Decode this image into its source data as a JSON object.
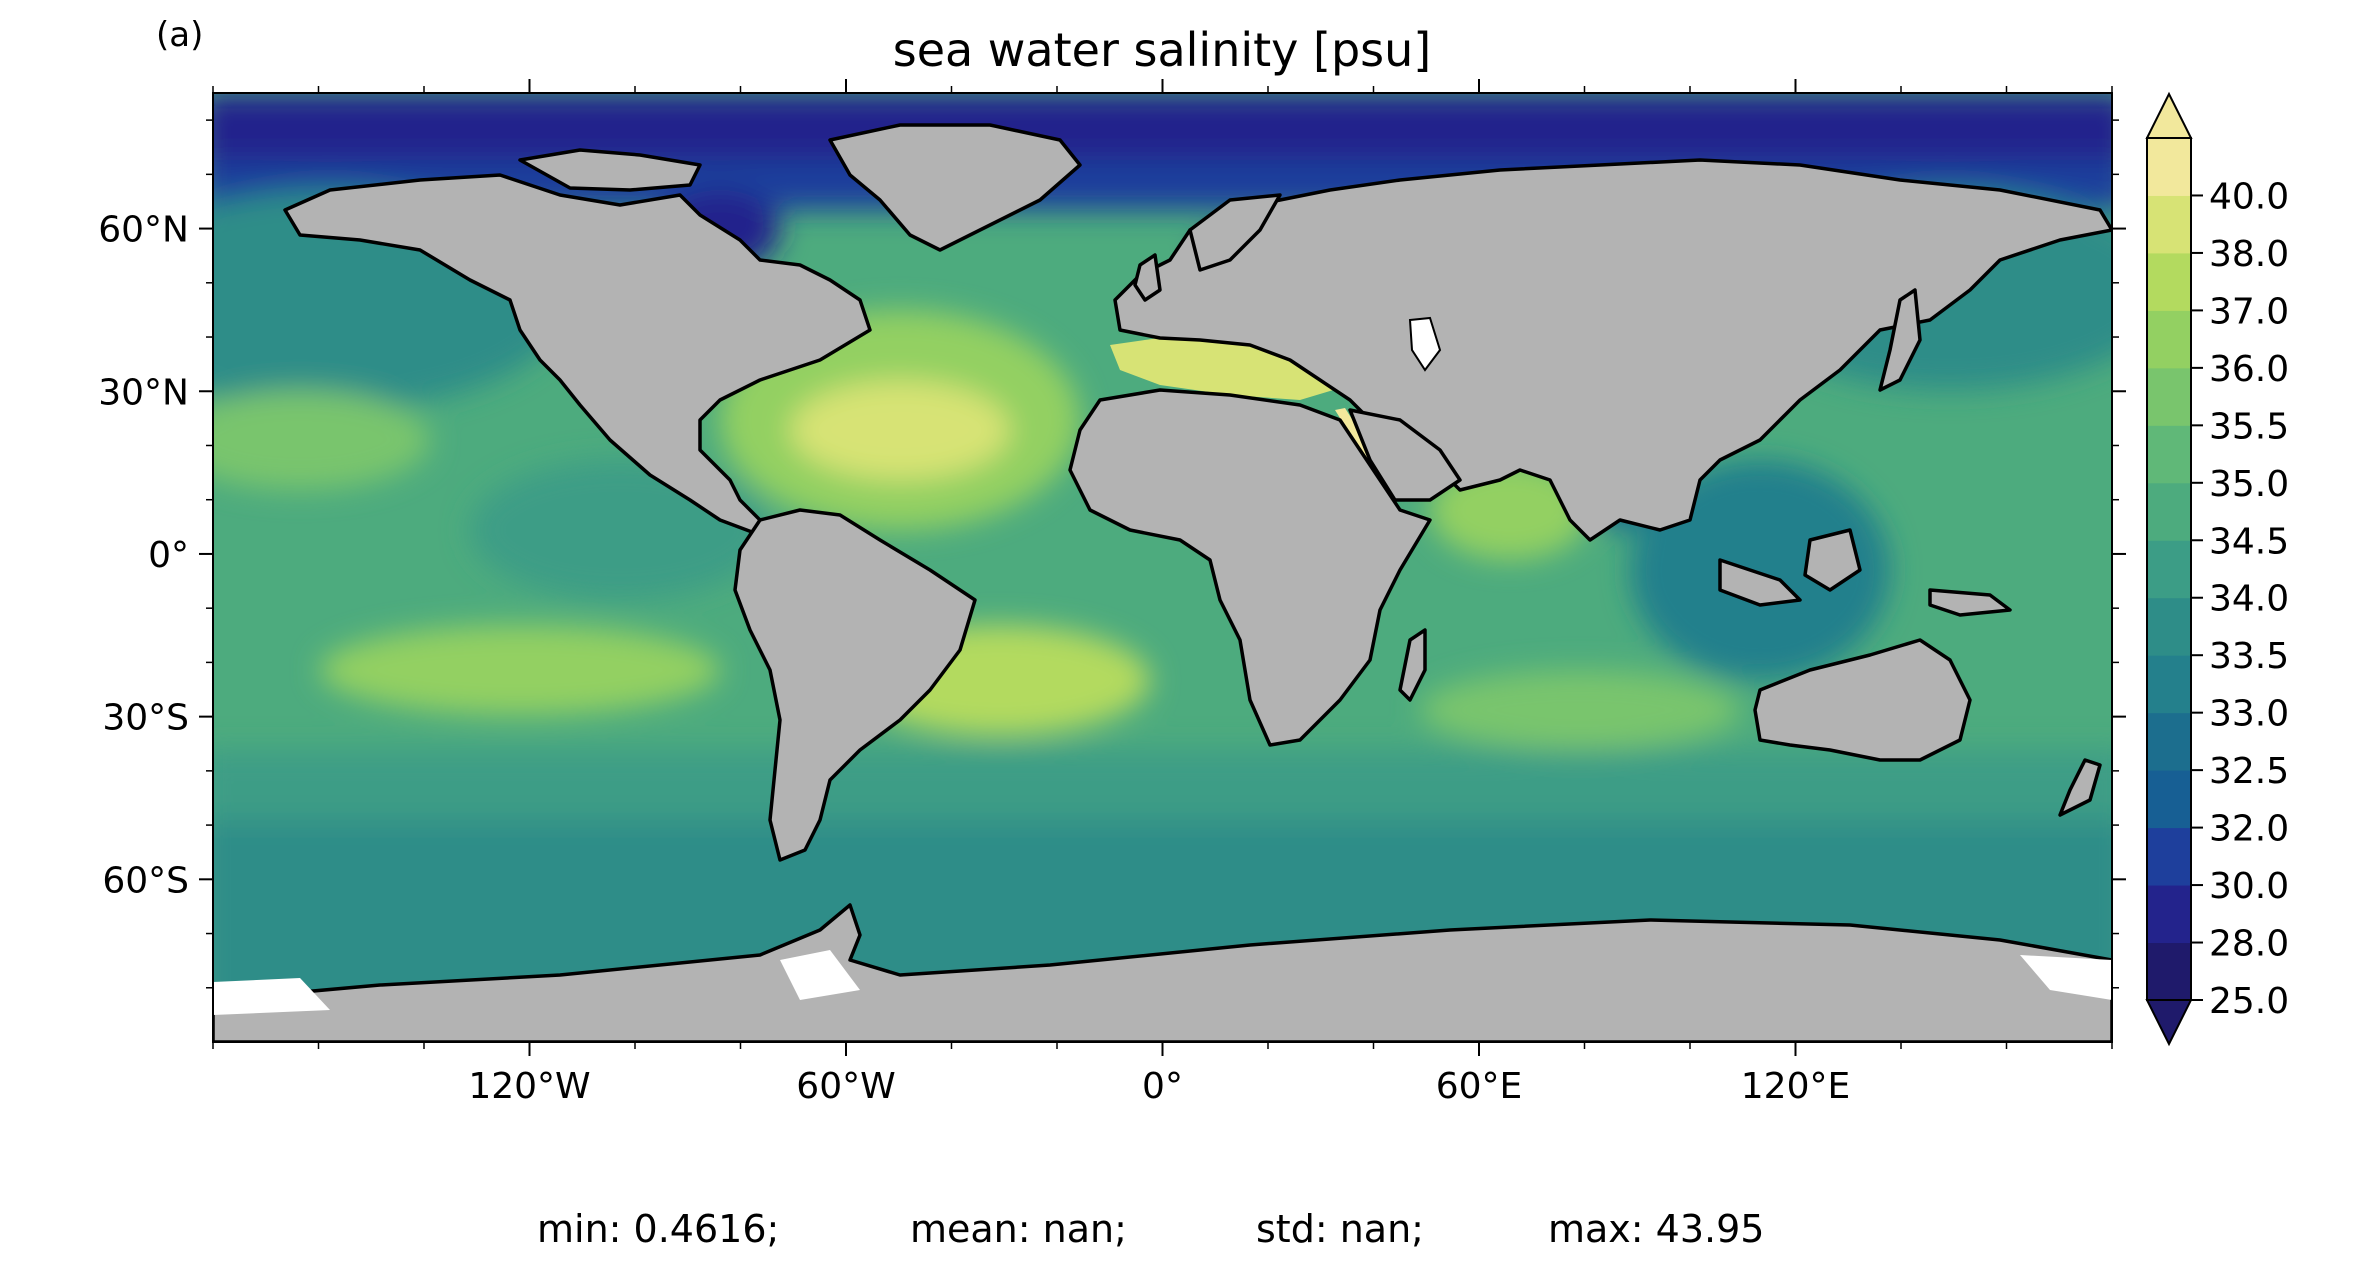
{
  "figure": {
    "panel_label": "(a)",
    "title": "sea water salinity [psu]"
  },
  "axes": {
    "lat_ticks": [
      "60°N",
      "30°N",
      "0°",
      "30°S",
      "60°S"
    ],
    "lon_ticks": [
      "120°W",
      "60°W",
      "0°",
      "60°E",
      "120°E"
    ]
  },
  "colorbar": {
    "levels": [
      "25.0",
      "28.0",
      "30.0",
      "32.0",
      "32.5",
      "33.0",
      "33.5",
      "34.0",
      "34.5",
      "35.0",
      "35.5",
      "36.0",
      "37.0",
      "38.0",
      "40.0"
    ],
    "colors": [
      "#1f1a6b",
      "#23238c",
      "#1e3f9c",
      "#175f94",
      "#1c6e8e",
      "#24808c",
      "#2e8d88",
      "#3c9d86",
      "#4dab7e",
      "#60b878",
      "#79c56d",
      "#93d062",
      "#b3da5f",
      "#d7e375",
      "#f2e89c"
    ],
    "extend": "both"
  },
  "stats": {
    "min": "min: 0.4616;",
    "mean": "mean: nan;",
    "std": "std: nan;",
    "max": "max: 43.95"
  },
  "map_colors": {
    "land": "#b3b3b3",
    "ice": "#ffffff",
    "coast": "#000000"
  }
}
